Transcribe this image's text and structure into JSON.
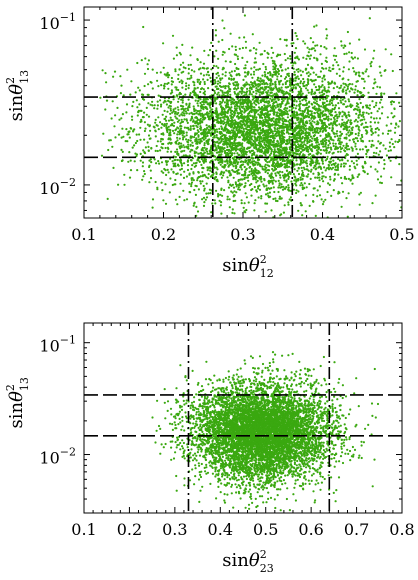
{
  "chart_data": [
    {
      "type": "scatter",
      "xlabel": "sinθ₁₂²",
      "xlabel_base": "sin",
      "xlabel_var": "θ",
      "xlabel_sub": "12",
      "xlabel_sup": "2",
      "ylabel": "sinθ₁₃²",
      "ylabel_base": "sin",
      "ylabel_var": "θ",
      "ylabel_sub": "13",
      "ylabel_sup": "2",
      "xlim": [
        0.1,
        0.5
      ],
      "ylim": [
        0.0063,
        0.12
      ],
      "yscale": "log",
      "xticks": [
        0.1,
        0.2,
        0.3,
        0.4,
        0.5
      ],
      "xtick_labels": [
        "0.1",
        "0.2",
        "0.3",
        "0.4",
        "0.5"
      ],
      "yticks": [
        0.01,
        0.1
      ],
      "ytick_label_mantissa": "10",
      "ytick_label_exponents": [
        "−2",
        "−1"
      ],
      "grid": false,
      "vlines": [
        0.262,
        0.362
      ],
      "vline_style": "dash-dot",
      "hlines": [
        0.0147,
        0.0341
      ],
      "hline_style": "dashed",
      "marker_color": "#3aa810",
      "scatter_distribution": {
        "x_center": 0.325,
        "x_spread": 0.075,
        "x_range": [
          0.12,
          0.5
        ],
        "y_center": 0.022,
        "y_spread_log10": 0.21,
        "y_range": [
          0.0063,
          0.12
        ],
        "n_points": 5200
      }
    },
    {
      "type": "scatter",
      "xlabel": "sinθ₂₃²",
      "xlabel_base": "sin",
      "xlabel_var": "θ",
      "xlabel_sub": "23",
      "xlabel_sup": "2",
      "ylabel": "sinθ₁₃²",
      "ylabel_base": "sin",
      "ylabel_var": "θ",
      "ylabel_sub": "13",
      "ylabel_sup": "2",
      "xlim": [
        0.1,
        0.8
      ],
      "ylim": [
        0.003,
        0.15
      ],
      "yscale": "log",
      "xticks": [
        0.1,
        0.2,
        0.3,
        0.4,
        0.5,
        0.6,
        0.7,
        0.8
      ],
      "xtick_labels": [
        "0.1",
        "0.2",
        "0.3",
        "0.4",
        "0.5",
        "0.6",
        "0.7",
        "0.8"
      ],
      "yticks": [
        0.01,
        0.1
      ],
      "ytick_label_mantissa": "10",
      "ytick_label_exponents": [
        "−2",
        "−1"
      ],
      "grid": false,
      "vlines": [
        0.33,
        0.64
      ],
      "vline_style": "dash-dot",
      "hlines": [
        0.0147,
        0.0341
      ],
      "hline_style": "dashed",
      "marker_color": "#3aa810",
      "scatter_distribution": {
        "x_center": 0.49,
        "x_spread": 0.075,
        "x_range": [
          0.25,
          0.8
        ],
        "y_center": 0.016,
        "y_spread_log10": 0.22,
        "y_range": [
          0.003,
          0.09
        ],
        "n_points": 6500
      }
    }
  ]
}
